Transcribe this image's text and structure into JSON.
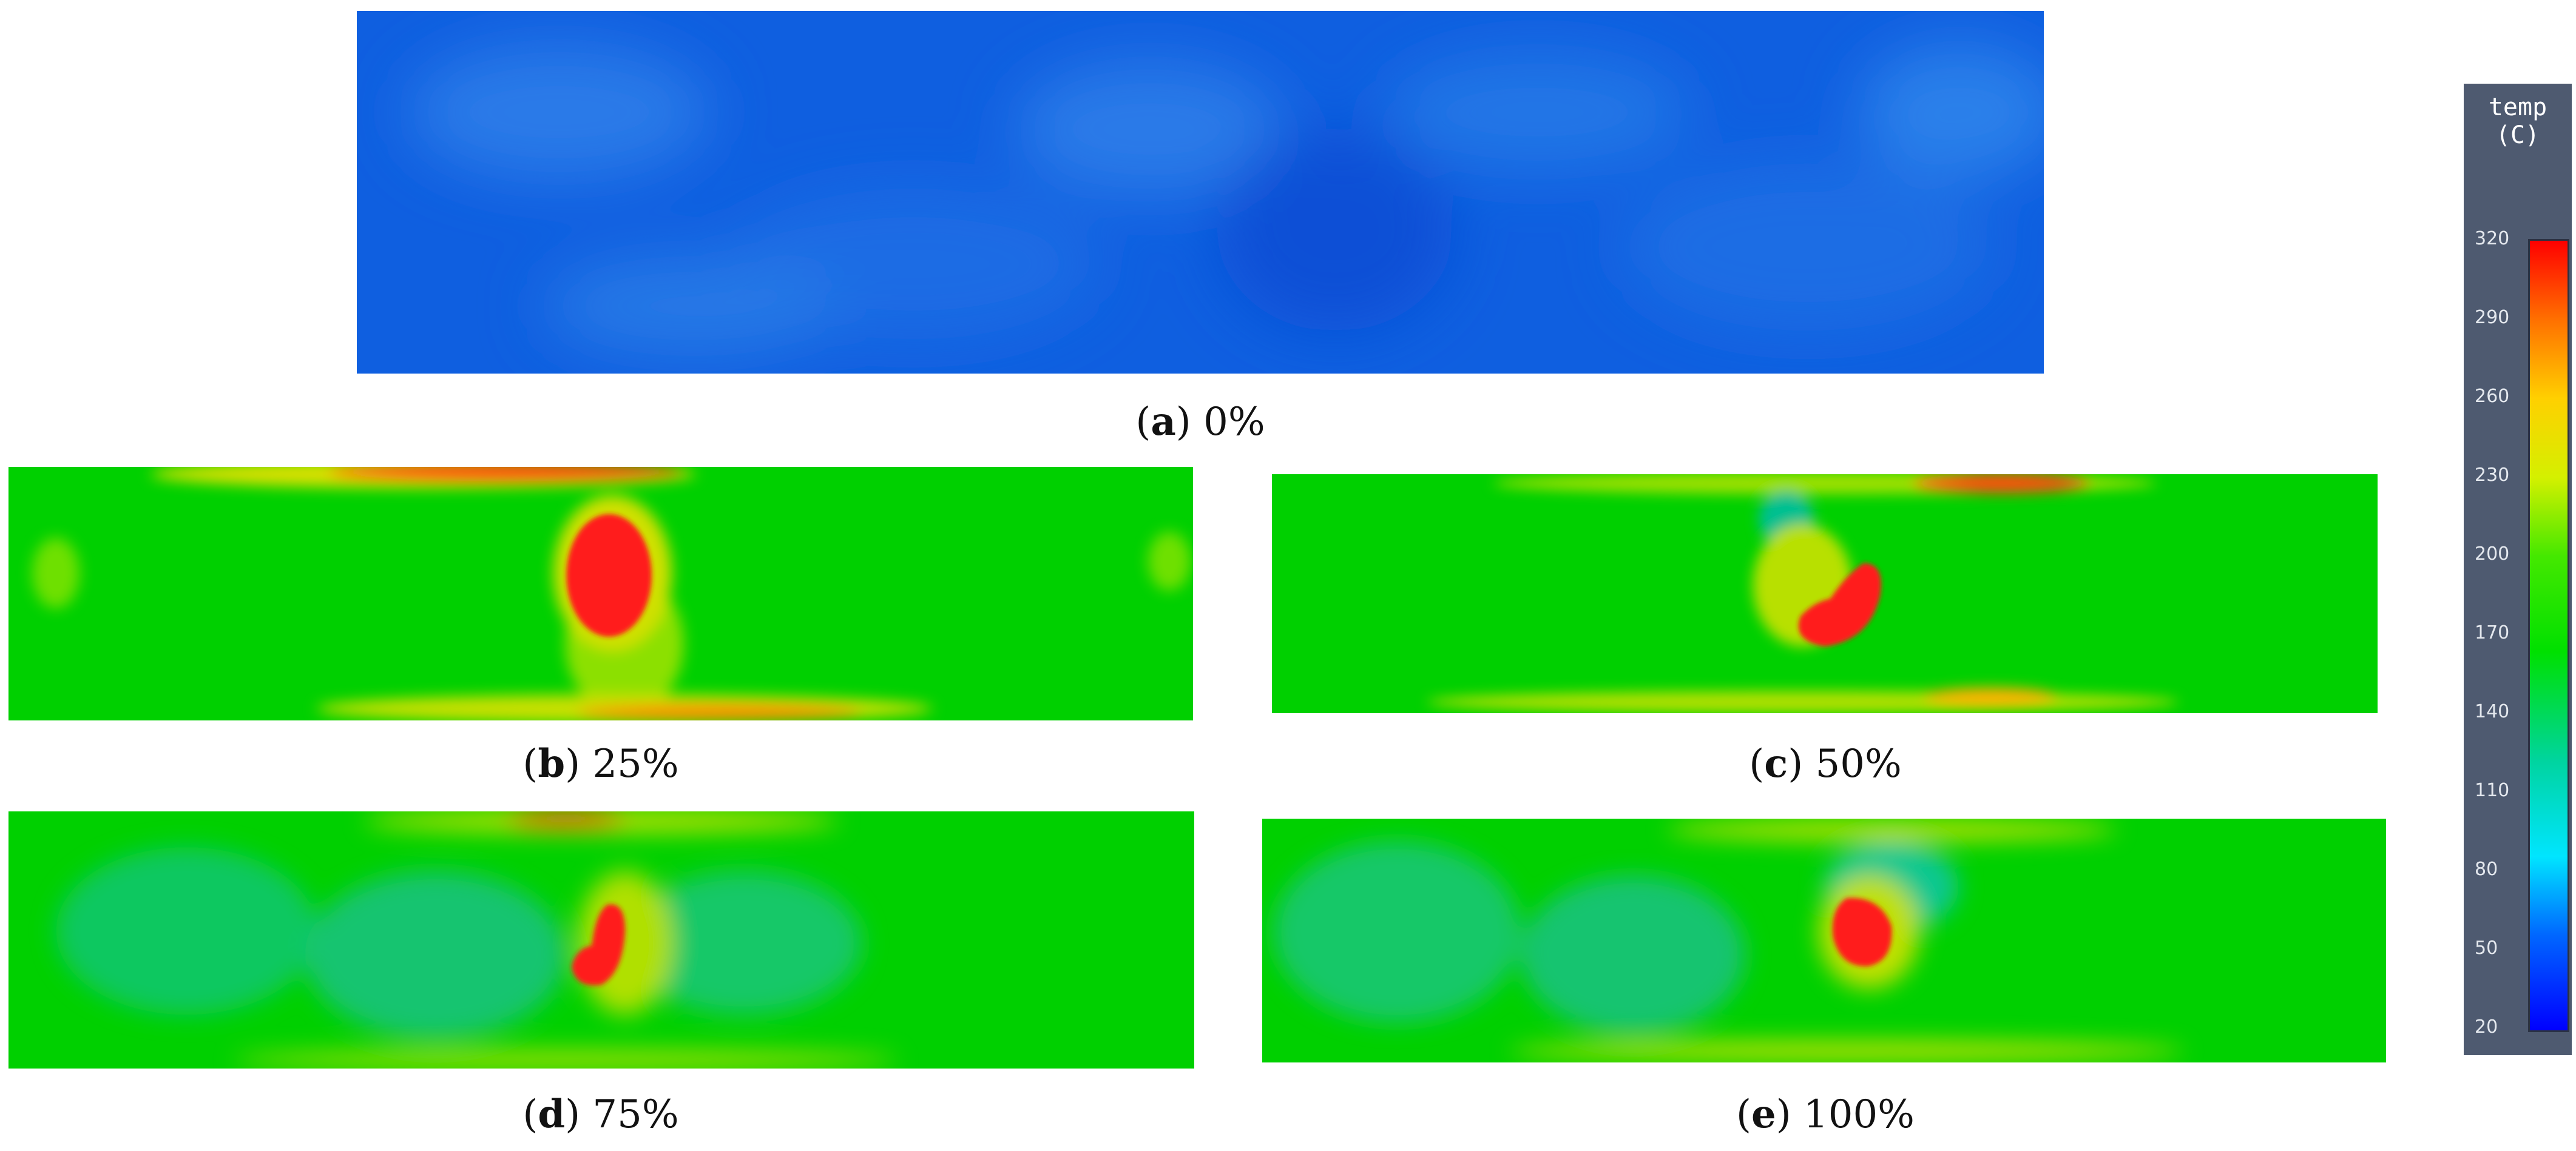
{
  "figure": {
    "panels": [
      {
        "id": "a",
        "letter": "a",
        "percent": "0%",
        "state": "cold"
      },
      {
        "id": "b",
        "letter": "b",
        "percent": "25%",
        "state": "hot"
      },
      {
        "id": "c",
        "letter": "c",
        "percent": "50%",
        "state": "hot"
      },
      {
        "id": "d",
        "letter": "d",
        "percent": "75%",
        "state": "hot"
      },
      {
        "id": "e",
        "letter": "e",
        "percent": "100%",
        "state": "hot"
      }
    ]
  },
  "colorbar": {
    "title_line1": "temp",
    "title_line2": "(C)",
    "ticks": [
      "320",
      "290",
      "260",
      "230",
      "200",
      "170",
      "140",
      "110",
      "80",
      "50",
      "20"
    ],
    "range": [
      20,
      320
    ],
    "colors": {
      "low": "#0000ff",
      "mid": "#00e000",
      "high": "#ff0000"
    }
  }
}
